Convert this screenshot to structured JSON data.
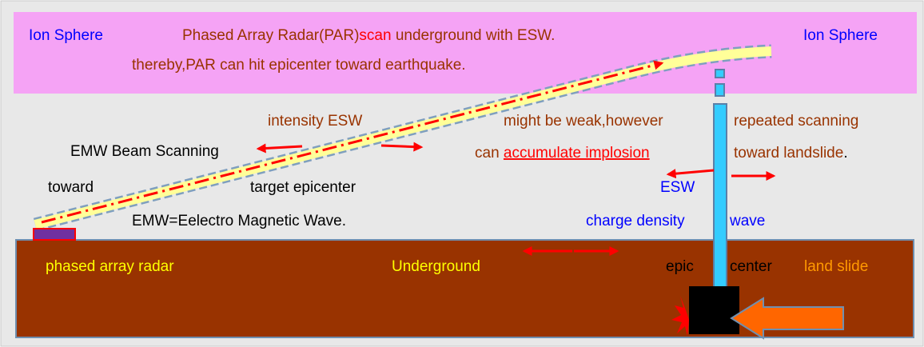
{
  "header": {
    "ion_sphere_left": "Ion Sphere",
    "par_line": [
      "Phased Array Radar(PAR)",
      "scan",
      " underground with ESW."
    ],
    "ion_sphere_right": "Ion Sphere",
    "thereby": "thereby,PAR can hit epicenter toward earthquake."
  },
  "labels": {
    "intensity_esw": "intensity ESW",
    "might_be_weak": "might be weak,however",
    "repeated_scanning": "repeated scanning",
    "emw_beam_scanning": "EMW Beam Scanning",
    "can_accumulate": [
      "can ",
      "accumulate implosion"
    ],
    "toward_landslide": [
      "toward landslide",
      "."
    ],
    "toward": "toward",
    "target_epicenter": "target epicenter",
    "esw": "ESW",
    "emw_definition": "EMW=Eelectro Magnetic Wave.",
    "charge_density": "charge density",
    "wave": "wave"
  },
  "ground": {
    "phased_array_radar": "phased array radar",
    "underground": "Underground",
    "epic": "epic",
    "center": "center",
    "land_slide": "land slide"
  }
}
